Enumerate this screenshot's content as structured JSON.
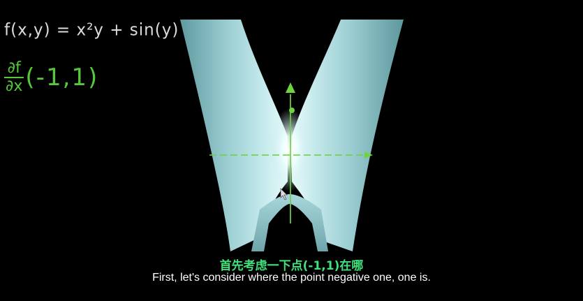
{
  "video": {
    "formula": "f(x,y) = x²y + sin(y)",
    "derivative": {
      "numerator": "∂f",
      "denominator": "∂x",
      "point": "(-1,1)"
    },
    "subtitles": {
      "chinese": "首先考虑一下点(-1,1)在哪",
      "english": "First, let's consider where the point negative one, one is."
    }
  },
  "colors": {
    "surface": "#8fc3c8",
    "surface_highlight": "#ffffff",
    "axis_arrow": "#6fd23e",
    "derivative_text": "#55c93a",
    "formula_text": "#dcdcdc",
    "subtitle_chinese": "#3fe27a",
    "subtitle_english": "#ffffff"
  }
}
